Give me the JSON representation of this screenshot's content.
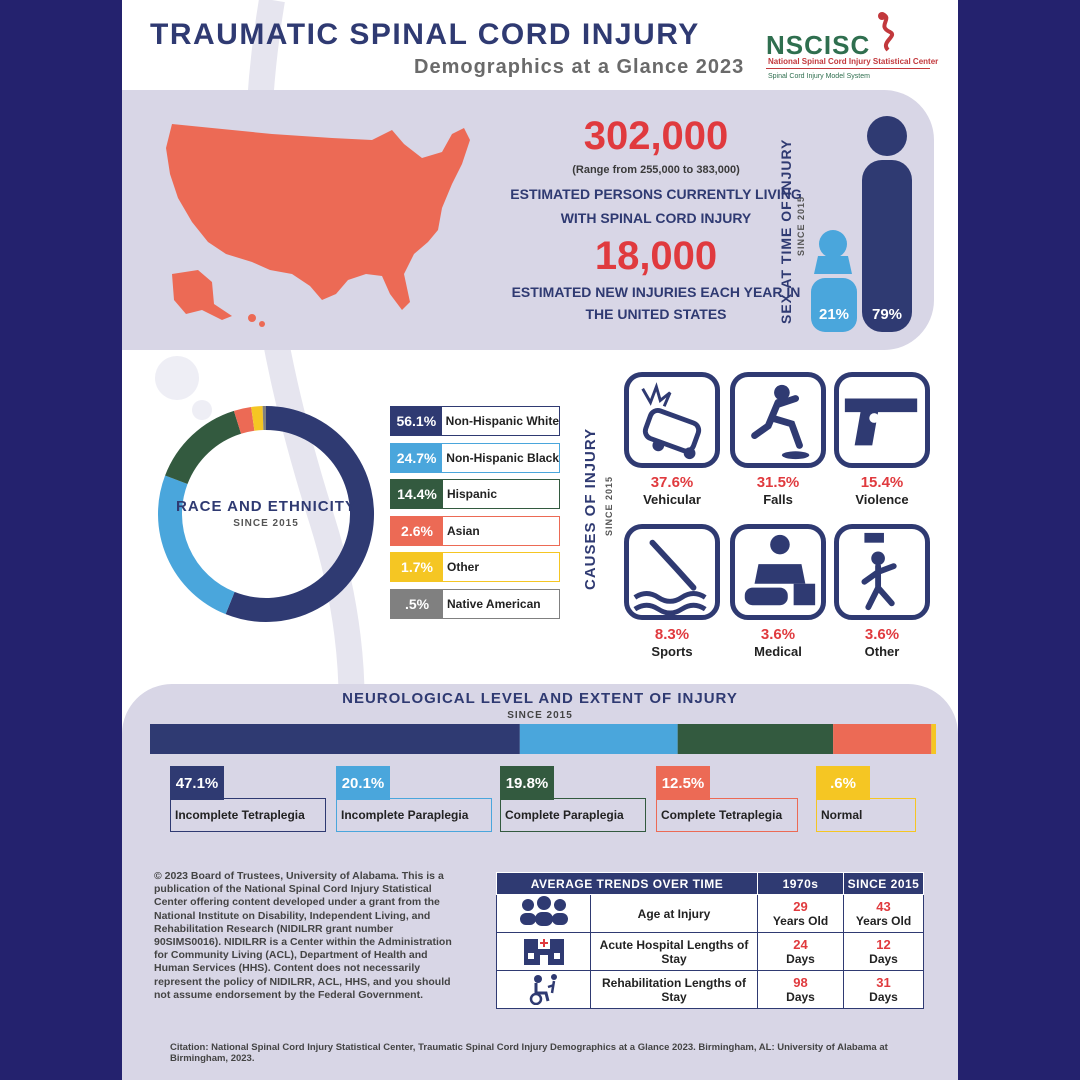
{
  "header": {
    "title": "TRAUMATIC SPINAL CORD INJURY",
    "subtitle": "Demographics at a Glance 2023",
    "logo": "NSCISC",
    "logo_sub": "National Spinal Cord Injury Statistical Center",
    "logo_sub2": "Spinal Cord Injury Model System"
  },
  "prevalence": {
    "number": "302,000",
    "range": "(Range from 255,000 to 383,000)",
    "line1": "ESTIMATED PERSONS CURRENTLY LIVING",
    "line2": "WITH SPINAL CORD INJURY"
  },
  "incidence": {
    "number": "18,000",
    "line1": "ESTIMATED NEW INJURIES EACH YEAR IN",
    "line2": "THE UNITED STATES"
  },
  "sex": {
    "title": "SEX AT TIME OF INJURY",
    "since": "SINCE 2015",
    "female_pct": "21%",
    "male_pct": "79%",
    "female_value": 21,
    "male_value": 79,
    "female_color": "#4aa6dc",
    "male_color": "#2f3a72"
  },
  "chart_data": [
    {
      "type": "pie",
      "title": "RACE AND ETHNICITY",
      "subtitle": "SINCE 2015",
      "categories": [
        "Non-Hispanic White",
        "Non-Hispanic Black",
        "Hispanic",
        "Asian",
        "Other",
        "Native American"
      ],
      "values": [
        56.1,
        24.7,
        14.4,
        2.6,
        1.7,
        0.5
      ],
      "labels": [
        "56.1%",
        "24.7%",
        "14.4%",
        "2.6%",
        "1.7%",
        ".5%"
      ],
      "colors": [
        "#2f3a72",
        "#4aa6dc",
        "#335a3f",
        "#ec6a55",
        "#f5c623",
        "#808080"
      ]
    },
    {
      "type": "bar",
      "title": "NEUROLOGICAL LEVEL AND EXTENT OF INJURY",
      "subtitle": "SINCE 2015",
      "categories": [
        "Incomplete Tetraplegia",
        "Incomplete Paraplegia",
        "Complete Paraplegia",
        "Complete Tetraplegia",
        "Normal"
      ],
      "values": [
        47.1,
        20.1,
        19.8,
        12.5,
        0.6
      ],
      "labels": [
        "47.1%",
        "20.1%",
        "19.8%",
        "12.5%",
        ".6%"
      ],
      "colors": [
        "#2f3a72",
        "#4aa6dc",
        "#335a3f",
        "#ec6a55",
        "#f5c623"
      ]
    },
    {
      "type": "table",
      "title": "CAUSES OF INJURY",
      "subtitle": "SINCE 2015",
      "categories": [
        "Vehicular",
        "Falls",
        "Violence",
        "Sports",
        "Medical",
        "Other"
      ],
      "values": [
        37.6,
        31.5,
        15.4,
        8.3,
        3.6,
        3.6
      ],
      "labels": [
        "37.6%",
        "31.5%",
        "15.4%",
        "8.3%",
        "3.6%",
        "3.6%"
      ],
      "icons": [
        "car-crash-icon",
        "fall-icon",
        "gun-icon",
        "diving-icon",
        "medical-cpr-icon",
        "falling-object-icon"
      ]
    }
  ],
  "trends": {
    "header": "AVERAGE TRENDS OVER TIME",
    "col1": "1970s",
    "col2": "SINCE 2015",
    "rows": [
      {
        "label": "Age at Injury",
        "v1": "29",
        "u1": "Years Old",
        "v2": "43",
        "u2": "Years Old",
        "icon": "people-icon"
      },
      {
        "label": "Acute Hospital Lengths of Stay",
        "v1": "24",
        "u1": "Days",
        "v2": "12",
        "u2": "Days",
        "icon": "hospital-icon"
      },
      {
        "label": "Rehabilitation Lengths of Stay",
        "v1": "98",
        "u1": "Days",
        "v2": "31",
        "u2": "Days",
        "icon": "wheelchair-rehab-icon"
      }
    ]
  },
  "copyright": "© 2023 Board of Trustees, University of Alabama. This is a publication of the National Spinal Cord Injury Statistical Center offering content developed under a grant from the National Institute on Disability, Independent Living, and Rehabilitation Research (NIDILRR grant number 90SIMS0016). NIDILRR is a Center within the Administration for Community Living (ACL), Department of Health and Human Services (HHS). Content does not necessarily represent the policy of NIDILRR, ACL, HHS, and you should not assume endorsement by the Federal Government.",
  "citation": "Citation: National Spinal Cord Injury Statistical Center, Traumatic Spinal Cord Injury Demographics at a Glance 2023. Birmingham, AL: University of Alabama at Birmingham, 2023.",
  "colors": {
    "navy": "#2f3a72",
    "red": "#e03a3e",
    "map": "#ec6a55",
    "panel": "#d8d6e6"
  }
}
